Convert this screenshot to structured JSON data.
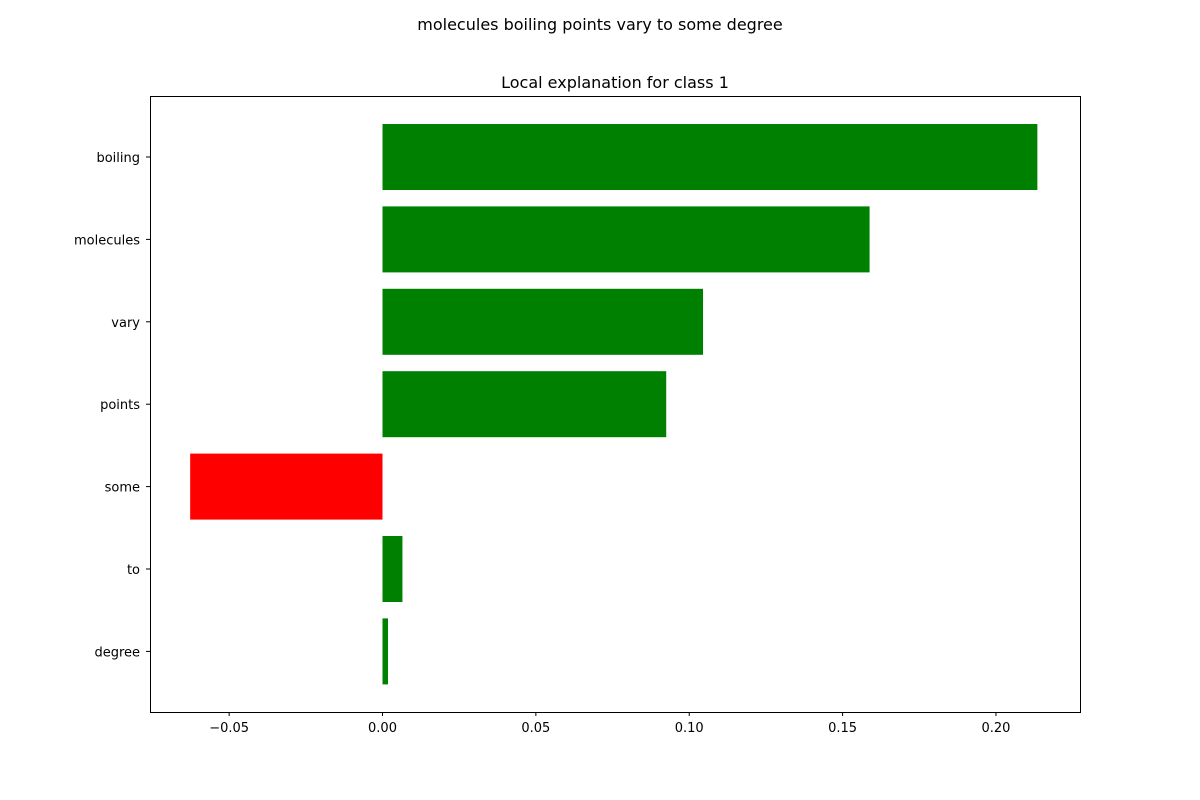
{
  "chart_data": {
    "type": "bar",
    "orientation": "horizontal",
    "suptitle": "molecules boiling points vary to some degree",
    "title": "Local explanation for class 1",
    "xlabel": "",
    "ylabel": "",
    "categories": [
      "boiling",
      "molecules",
      "vary",
      "points",
      "some",
      "to",
      "degree"
    ],
    "values": [
      0.2135,
      0.1588,
      0.1045,
      0.0925,
      -0.0627,
      0.0065,
      0.0018
    ],
    "bar_colors": [
      "#008000",
      "#008000",
      "#008000",
      "#008000",
      "#ff0000",
      "#008000",
      "#008000"
    ],
    "xlim": [
      -0.0758,
      0.2274
    ],
    "xticks": [
      -0.05,
      0.0,
      0.05,
      0.1,
      0.15,
      0.2
    ],
    "xtick_labels": [
      "−0.05",
      "0.00",
      "0.05",
      "0.10",
      "0.15",
      "0.20"
    ],
    "grid": false,
    "legend": "none",
    "colors": {
      "positive": "#008000",
      "negative": "#ff0000"
    }
  }
}
